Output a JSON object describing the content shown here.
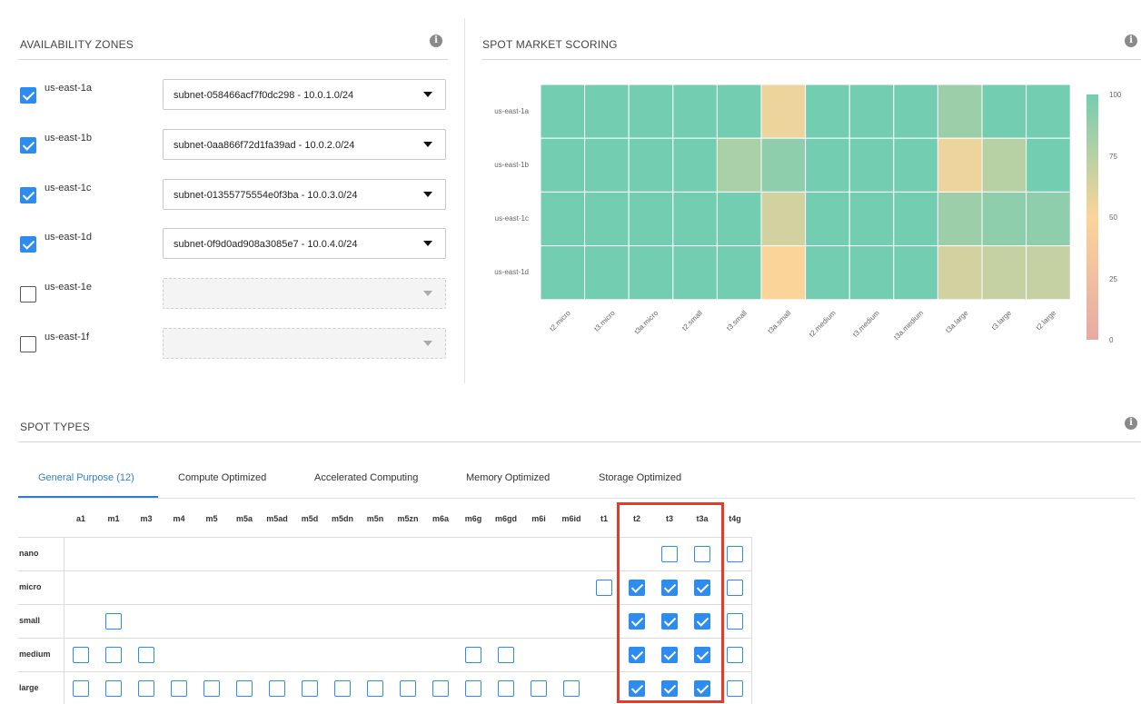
{
  "availability_zones": {
    "title": "AVAILABILITY ZONES",
    "zones": [
      {
        "name": "us-east-1a",
        "checked": true,
        "subnet": "subnet-058466acf7f0dc298 - 10.0.1.0/24"
      },
      {
        "name": "us-east-1b",
        "checked": true,
        "subnet": "subnet-0aa866f72d1fa39ad - 10.0.2.0/24"
      },
      {
        "name": "us-east-1c",
        "checked": true,
        "subnet": "subnet-01355775554e0f3ba - 10.0.3.0/24"
      },
      {
        "name": "us-east-1d",
        "checked": true,
        "subnet": "subnet-0f9d0ad908a3085e7 - 10.0.4.0/24"
      },
      {
        "name": "us-east-1e",
        "checked": false,
        "subnet": ""
      },
      {
        "name": "us-east-1f",
        "checked": false,
        "subnet": ""
      }
    ]
  },
  "spot_market_scoring": {
    "title": "SPOT MARKET SCORING",
    "rows": [
      "us-east-1a",
      "us-east-1b",
      "us-east-1c",
      "us-east-1d"
    ],
    "columns": [
      "t2.micro",
      "t3.micro",
      "t3a.micro",
      "t2.small",
      "t3.small",
      "t3a.small",
      "t2.medium",
      "t3.medium",
      "t3a.medium",
      "t3a.large",
      "t3.large",
      "t2.large"
    ],
    "scores": [
      [
        100,
        100,
        100,
        100,
        100,
        55,
        100,
        100,
        100,
        85,
        100,
        100
      ],
      [
        100,
        100,
        100,
        100,
        80,
        90,
        100,
        100,
        100,
        55,
        75,
        100
      ],
      [
        100,
        100,
        100,
        100,
        100,
        65,
        100,
        100,
        100,
        85,
        90,
        90
      ],
      [
        100,
        100,
        100,
        100,
        100,
        50,
        100,
        100,
        100,
        65,
        70,
        70
      ]
    ],
    "scale_ticks": [
      "100",
      "75",
      "50",
      "25",
      "0"
    ],
    "colors": {
      "high": "#73cdb0",
      "mid": "#fbd49a",
      "low": "#e6aaa5"
    }
  },
  "spot_types": {
    "title": "SPOT TYPES",
    "tabs": [
      "General Purpose (12)",
      "Compute Optimized",
      "Accelerated Computing",
      "Memory Optimized",
      "Storage Optimized"
    ],
    "active_tab": 0,
    "families": [
      "a1",
      "m1",
      "m3",
      "m4",
      "m5",
      "m5a",
      "m5ad",
      "m5d",
      "m5dn",
      "m5n",
      "m5zn",
      "m6a",
      "m6g",
      "m6gd",
      "m6i",
      "m6id",
      "t1",
      "t2",
      "t3",
      "t3a",
      "t4g"
    ],
    "sizes": [
      "nano",
      "micro",
      "small",
      "medium",
      "large"
    ],
    "cells": {
      "nano": {
        "t3": false,
        "t3a": false,
        "t4g": false
      },
      "micro": {
        "t1": false,
        "t2": true,
        "t3": true,
        "t3a": true,
        "t4g": false
      },
      "small": {
        "m1": false,
        "t2": true,
        "t3": true,
        "t3a": true,
        "t4g": false
      },
      "medium": {
        "a1": false,
        "m1": false,
        "m3": false,
        "m6g": false,
        "m6gd": false,
        "t2": true,
        "t3": true,
        "t3a": true,
        "t4g": false
      },
      "large": {
        "a1": false,
        "m1": false,
        "m3": false,
        "m4": false,
        "m5": false,
        "m5a": false,
        "m5ad": false,
        "m5d": false,
        "m5dn": false,
        "m5n": false,
        "m5zn": false,
        "m6a": false,
        "m6g": false,
        "m6gd": false,
        "m6i": false,
        "m6id": false,
        "t2": true,
        "t3": true,
        "t3a": true,
        "t4g": false
      }
    }
  }
}
